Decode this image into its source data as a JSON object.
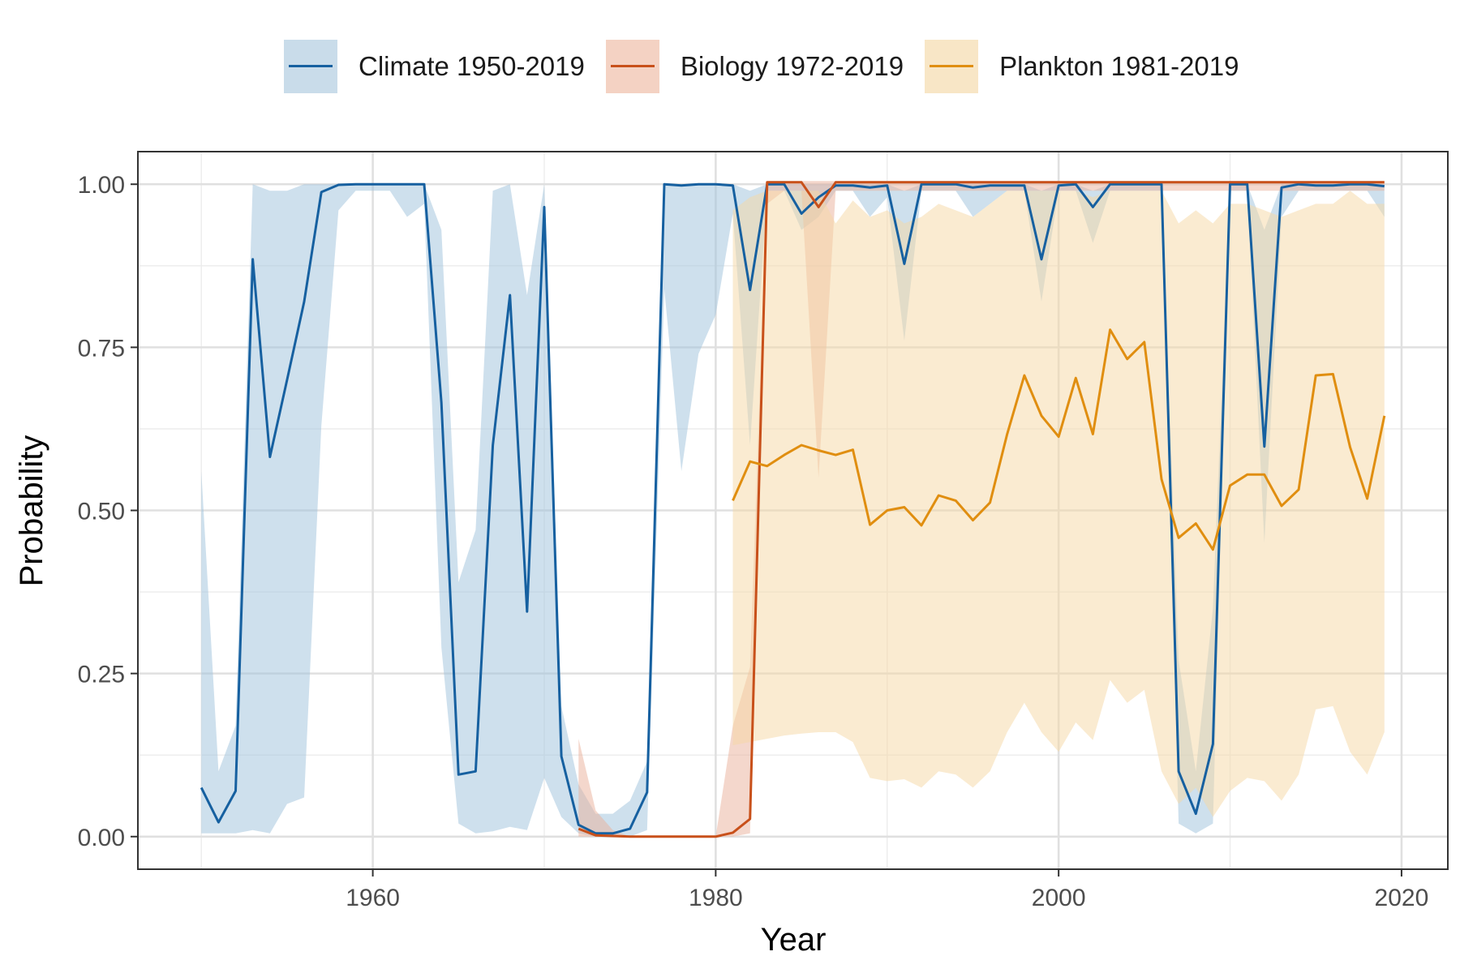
{
  "chart_data": {
    "type": "line",
    "xlabel": "Year",
    "ylabel": "Probability",
    "xlim": [
      1946.3,
      2022.7
    ],
    "ylim": [
      -0.05,
      1.05
    ],
    "xticks": [
      1960,
      1980,
      2000,
      2020
    ],
    "xtick_labels": [
      "1960",
      "1980",
      "2000",
      "2020"
    ],
    "yticks": [
      0,
      0.25,
      0.5,
      0.75,
      1.0
    ],
    "ytick_labels": [
      "0.00",
      "0.25",
      "0.50",
      "0.75",
      "1.00"
    ],
    "grid": true,
    "legend_position": "top",
    "series": [
      {
        "name": "Climate 1950-2019",
        "color": "#1660a0",
        "ribbon_color": "#9ec1db",
        "x": [
          1950,
          1951,
          1952,
          1953,
          1954,
          1955,
          1956,
          1957,
          1958,
          1959,
          1960,
          1961,
          1962,
          1963,
          1964,
          1965,
          1966,
          1967,
          1968,
          1969,
          1970,
          1971,
          1972,
          1973,
          1974,
          1975,
          1976,
          1977,
          1978,
          1979,
          1980,
          1981,
          1982,
          1983,
          1984,
          1985,
          1986,
          1987,
          1988,
          1989,
          1990,
          1991,
          1992,
          1993,
          1994,
          1995,
          1996,
          1997,
          1998,
          1999,
          2000,
          2001,
          2002,
          2003,
          2004,
          2005,
          2006,
          2007,
          2008,
          2009,
          2010,
          2011,
          2012,
          2013,
          2014,
          2015,
          2016,
          2017,
          2018,
          2019
        ],
        "y": [
          0.075,
          0.022,
          0.07,
          0.885,
          0.582,
          0.7,
          0.82,
          0.988,
          0.999,
          1.0,
          1.0,
          1.0,
          1.0,
          1.0,
          0.665,
          0.095,
          0.1,
          0.6,
          0.83,
          0.345,
          0.965,
          0.123,
          0.018,
          0.005,
          0.005,
          0.012,
          0.068,
          1.0,
          0.998,
          1.0,
          1.0,
          0.998,
          0.838,
          1.0,
          1.0,
          0.955,
          0.98,
          0.998,
          0.998,
          0.995,
          0.998,
          0.878,
          1.0,
          1.0,
          1.0,
          0.995,
          0.998,
          0.998,
          0.998,
          0.885,
          0.998,
          1.0,
          0.965,
          1.0,
          1.0,
          1.0,
          1.0,
          0.1,
          0.035,
          0.142,
          1.0,
          1.0,
          0.598,
          0.995,
          1.0,
          0.998,
          0.998,
          1.0,
          1.0,
          0.997
        ],
        "lower": [
          0.005,
          0.005,
          0.005,
          0.01,
          0.005,
          0.05,
          0.06,
          0.63,
          0.96,
          0.99,
          0.99,
          0.99,
          0.95,
          0.97,
          0.29,
          0.02,
          0.005,
          0.008,
          0.015,
          0.01,
          0.09,
          0.03,
          0.005,
          0.0,
          0.0,
          0.0,
          0.01,
          0.84,
          0.56,
          0.74,
          0.8,
          0.955,
          0.6,
          0.99,
          0.99,
          0.93,
          0.95,
          0.99,
          0.99,
          0.95,
          0.98,
          0.76,
          0.99,
          0.99,
          0.99,
          0.95,
          0.97,
          0.99,
          0.99,
          0.82,
          0.99,
          0.99,
          0.91,
          0.99,
          0.99,
          0.99,
          0.99,
          0.02,
          0.005,
          0.02,
          0.99,
          0.99,
          0.45,
          0.95,
          0.99,
          0.99,
          0.99,
          0.99,
          0.99,
          0.95
        ],
        "upper": [
          0.56,
          0.1,
          0.17,
          1.0,
          0.99,
          0.99,
          1.0,
          1.0,
          1.0,
          1.0,
          1.0,
          1.0,
          1.0,
          1.0,
          0.93,
          0.39,
          0.47,
          0.99,
          1.0,
          0.83,
          1.0,
          0.2,
          0.08,
          0.035,
          0.035,
          0.055,
          0.115,
          1.0,
          1.0,
          1.0,
          1.0,
          1.0,
          0.99,
          1.0,
          1.0,
          1.0,
          1.0,
          1.0,
          1.0,
          1.0,
          1.0,
          0.99,
          1.0,
          1.0,
          1.0,
          1.0,
          1.0,
          1.0,
          1.0,
          0.99,
          1.0,
          1.0,
          0.99,
          1.0,
          1.0,
          1.0,
          1.0,
          0.27,
          0.1,
          0.35,
          1.0,
          1.0,
          0.93,
          1.0,
          1.0,
          1.0,
          1.0,
          1.0,
          1.0,
          1.0
        ]
      },
      {
        "name": "Biology 1972-2019",
        "color": "#c8501a",
        "ribbon_color": "#eab09a",
        "x": [
          1972,
          1973,
          1974,
          1975,
          1976,
          1977,
          1978,
          1979,
          1980,
          1981,
          1982,
          1983,
          1984,
          1985,
          1986,
          1987,
          1988,
          1989,
          1990,
          1991,
          1992,
          1993,
          1994,
          1995,
          1996,
          1997,
          1998,
          1999,
          2000,
          2001,
          2002,
          2003,
          2004,
          2005,
          2006,
          2007,
          2008,
          2009,
          2010,
          2011,
          2012,
          2013,
          2014,
          2015,
          2016,
          2017,
          2018,
          2019
        ],
        "y": [
          0.012,
          0.002,
          0.001,
          0.0,
          0.0,
          0.0,
          0.0,
          0.0,
          0.0,
          0.006,
          0.027,
          1.003,
          1.003,
          1.003,
          0.965,
          1.003,
          1.003,
          1.003,
          1.003,
          1.003,
          1.003,
          1.003,
          1.003,
          1.003,
          1.003,
          1.003,
          1.003,
          1.003,
          1.003,
          1.003,
          1.003,
          1.003,
          1.003,
          1.003,
          1.003,
          1.003,
          1.003,
          1.003,
          1.003,
          1.003,
          1.003,
          1.003,
          1.003,
          1.003,
          1.003,
          1.003,
          1.003,
          1.003
        ],
        "lower": [
          0.0,
          0.0,
          0.0,
          0.0,
          0.0,
          0.0,
          0.0,
          0.0,
          0.0,
          0.0,
          0.005,
          0.97,
          0.99,
          0.99,
          0.55,
          0.99,
          0.99,
          0.99,
          0.99,
          0.99,
          0.99,
          0.99,
          0.99,
          0.99,
          0.99,
          0.99,
          0.99,
          0.99,
          0.99,
          0.99,
          0.99,
          0.99,
          0.99,
          0.99,
          0.99,
          0.99,
          0.99,
          0.99,
          0.99,
          0.99,
          0.99,
          0.99,
          0.99,
          0.99,
          0.99,
          0.99,
          0.99,
          0.99
        ],
        "upper": [
          0.15,
          0.04,
          0.01,
          0.0,
          0.0,
          0.0,
          0.0,
          0.0,
          0.0,
          0.17,
          0.26,
          1.005,
          1.005,
          1.005,
          1.005,
          1.005,
          1.005,
          1.005,
          1.005,
          1.005,
          1.005,
          1.005,
          1.005,
          1.005,
          1.005,
          1.005,
          1.005,
          1.005,
          1.005,
          1.005,
          1.005,
          1.005,
          1.005,
          1.005,
          1.005,
          1.005,
          1.005,
          1.005,
          1.005,
          1.005,
          1.005,
          1.005,
          1.005,
          1.005,
          1.005,
          1.005,
          1.005,
          1.005
        ]
      },
      {
        "name": "Plankton 1981-2019",
        "color": "#e08e10",
        "ribbon_color": "#f5d7a3",
        "x": [
          1981,
          1982,
          1983,
          1984,
          1985,
          1986,
          1987,
          1988,
          1989,
          1990,
          1991,
          1992,
          1993,
          1994,
          1995,
          1996,
          1997,
          1998,
          1999,
          2000,
          2001,
          2002,
          2003,
          2004,
          2005,
          2006,
          2007,
          2008,
          2009,
          2010,
          2011,
          2012,
          2013,
          2014,
          2015,
          2016,
          2017,
          2018,
          2019
        ],
        "y": [
          0.515,
          0.575,
          0.568,
          0.585,
          0.6,
          0.592,
          0.585,
          0.593,
          0.478,
          0.5,
          0.505,
          0.477,
          0.523,
          0.515,
          0.485,
          0.512,
          0.617,
          0.707,
          0.645,
          0.613,
          0.703,
          0.617,
          0.777,
          0.732,
          0.758,
          0.548,
          0.458,
          0.48,
          0.44,
          0.538,
          0.555,
          0.555,
          0.507,
          0.532,
          0.707,
          0.709,
          0.597,
          0.518,
          0.645
        ],
        "lower": [
          0.14,
          0.145,
          0.15,
          0.155,
          0.158,
          0.16,
          0.16,
          0.145,
          0.09,
          0.085,
          0.088,
          0.075,
          0.1,
          0.095,
          0.075,
          0.1,
          0.16,
          0.205,
          0.16,
          0.13,
          0.175,
          0.148,
          0.24,
          0.205,
          0.225,
          0.1,
          0.05,
          0.075,
          0.03,
          0.07,
          0.09,
          0.085,
          0.055,
          0.095,
          0.195,
          0.2,
          0.13,
          0.095,
          0.16
        ],
        "upper": [
          0.96,
          0.98,
          0.99,
          0.99,
          0.99,
          0.99,
          0.94,
          0.975,
          0.95,
          0.96,
          0.94,
          0.95,
          0.97,
          0.96,
          0.95,
          0.97,
          0.99,
          0.99,
          0.99,
          0.99,
          0.99,
          0.98,
          0.99,
          0.99,
          0.99,
          0.99,
          0.94,
          0.96,
          0.94,
          0.97,
          0.97,
          0.96,
          0.95,
          0.96,
          0.97,
          0.97,
          0.99,
          0.97,
          0.97
        ]
      }
    ]
  }
}
